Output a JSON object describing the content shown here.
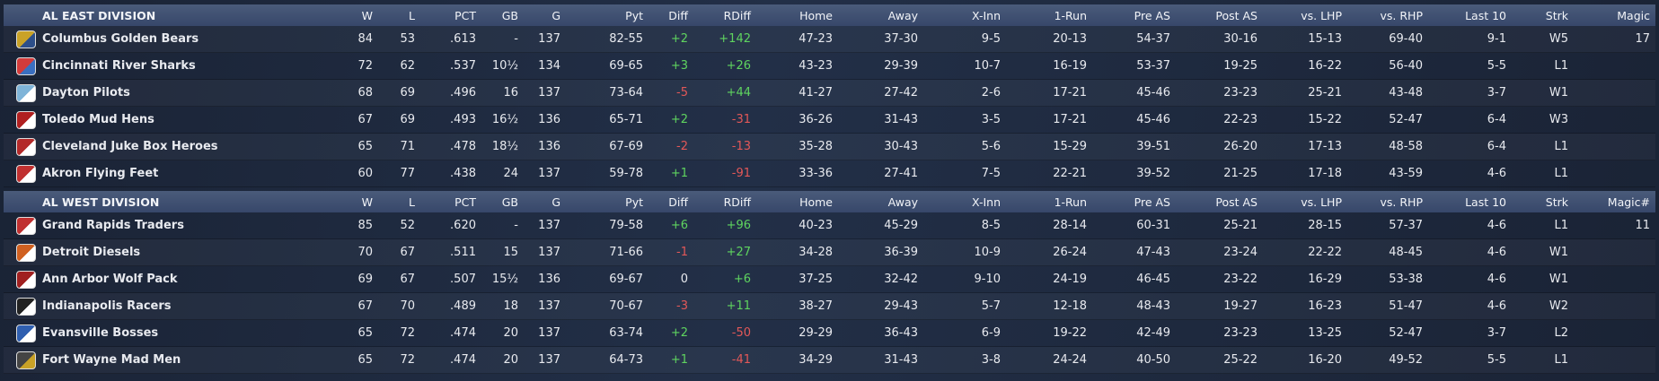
{
  "divisions": [
    {
      "title": "AL EAST DIVISION",
      "headers": [
        "W",
        "L",
        "PCT",
        "GB",
        "G",
        "Pyt",
        "Diff",
        "RDiff",
        "Home",
        "Away",
        "X-Inn",
        "1-Run",
        "Pre AS",
        "Post AS",
        "vs. LHP",
        "vs. RHP",
        "Last 10",
        "Strk",
        "Magic"
      ],
      "teams": [
        {
          "name": "Columbus Golden Bears",
          "cells": [
            "84",
            "53",
            ".613",
            "-",
            "137",
            "82-55",
            "+2",
            "+142",
            "47-23",
            "37-30",
            "9-5",
            "20-13",
            "54-37",
            "30-16",
            "15-13",
            "69-40",
            "9-1",
            "W5",
            "17"
          ]
        },
        {
          "name": "Cincinnati River Sharks",
          "cells": [
            "72",
            "62",
            ".537",
            "10½",
            "134",
            "69-65",
            "+3",
            "+26",
            "43-23",
            "29-39",
            "10-7",
            "16-19",
            "53-37",
            "19-25",
            "16-22",
            "56-40",
            "5-5",
            "L1"
          ]
        },
        {
          "name": "Dayton Pilots",
          "cells": [
            "68",
            "69",
            ".496",
            "16",
            "137",
            "73-64",
            "-5",
            "+44",
            "41-27",
            "27-42",
            "2-6",
            "17-21",
            "45-46",
            "23-23",
            "25-21",
            "43-48",
            "3-7",
            "W1"
          ]
        },
        {
          "name": "Toledo Mud Hens",
          "cells": [
            "67",
            "69",
            ".493",
            "16½",
            "136",
            "65-71",
            "+2",
            "-31",
            "36-26",
            "31-43",
            "3-5",
            "17-21",
            "45-46",
            "22-23",
            "15-22",
            "52-47",
            "6-4",
            "W3"
          ]
        },
        {
          "name": "Cleveland Juke Box Heroes",
          "cells": [
            "65",
            "71",
            ".478",
            "18½",
            "136",
            "67-69",
            "-2",
            "-13",
            "35-28",
            "30-43",
            "5-6",
            "15-29",
            "39-51",
            "26-20",
            "17-13",
            "48-58",
            "6-4",
            "L1"
          ]
        },
        {
          "name": "Akron Flying Feet",
          "cells": [
            "60",
            "77",
            ".438",
            "24",
            "137",
            "59-78",
            "+1",
            "-91",
            "33-36",
            "27-41",
            "7-5",
            "22-21",
            "39-52",
            "21-25",
            "17-18",
            "43-59",
            "4-6",
            "L1"
          ]
        }
      ]
    },
    {
      "title": "AL WEST DIVISION",
      "headers": [
        "W",
        "L",
        "PCT",
        "GB",
        "G",
        "Pyt",
        "Diff",
        "RDiff",
        "Home",
        "Away",
        "X-Inn",
        "1-Run",
        "Pre AS",
        "Post AS",
        "vs. LHP",
        "vs. RHP",
        "Last 10",
        "Strk",
        "Magic#"
      ],
      "teams": [
        {
          "name": "Grand Rapids Traders",
          "cells": [
            "85",
            "52",
            ".620",
            "-",
            "137",
            "79-58",
            "+6",
            "+96",
            "40-23",
            "45-29",
            "8-5",
            "28-14",
            "60-31",
            "25-21",
            "28-15",
            "57-37",
            "4-6",
            "L1",
            "11"
          ]
        },
        {
          "name": "Detroit Diesels",
          "cells": [
            "70",
            "67",
            ".511",
            "15",
            "137",
            "71-66",
            "-1",
            "+27",
            "34-28",
            "36-39",
            "10-9",
            "26-24",
            "47-43",
            "23-24",
            "22-22",
            "48-45",
            "4-6",
            "W1"
          ]
        },
        {
          "name": "Ann Arbor Wolf Pack",
          "cells": [
            "69",
            "67",
            ".507",
            "15½",
            "136",
            "69-67",
            "0",
            "+6",
            "37-25",
            "32-42",
            "9-10",
            "24-19",
            "46-45",
            "23-22",
            "16-29",
            "53-38",
            "4-6",
            "W1"
          ]
        },
        {
          "name": "Indianapolis Racers",
          "cells": [
            "67",
            "70",
            ".489",
            "18",
            "137",
            "70-67",
            "-3",
            "+11",
            "38-27",
            "29-43",
            "5-7",
            "12-18",
            "48-43",
            "19-27",
            "16-23",
            "51-47",
            "4-6",
            "W2"
          ]
        },
        {
          "name": "Evansville Bosses",
          "cells": [
            "65",
            "72",
            ".474",
            "20",
            "137",
            "63-74",
            "+2",
            "-50",
            "29-29",
            "36-43",
            "6-9",
            "19-22",
            "42-49",
            "23-23",
            "13-25",
            "52-47",
            "3-7",
            "L2"
          ]
        },
        {
          "name": "Fort Wayne Mad Men",
          "cells": [
            "65",
            "72",
            ".474",
            "20",
            "137",
            "64-73",
            "+1",
            "-41",
            "34-29",
            "31-43",
            "3-8",
            "24-24",
            "40-50",
            "25-22",
            "16-20",
            "49-52",
            "5-5",
            "L1"
          ]
        }
      ]
    }
  ]
}
